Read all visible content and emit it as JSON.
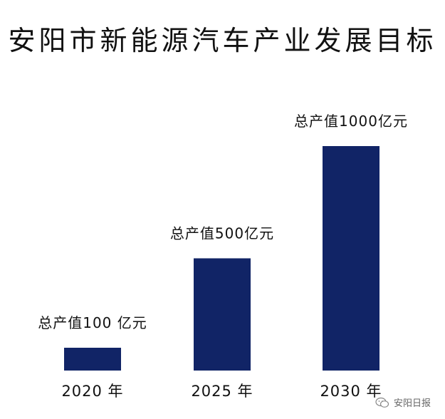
{
  "chart_data": {
    "type": "bar",
    "title": "安阳市新能源汽车产业发展目标",
    "categories": [
      "2020 年",
      "2025 年",
      "2030 年"
    ],
    "values": [
      100,
      500,
      1000
    ],
    "data_labels": [
      "总产值100 亿元",
      "总产值500亿元",
      "总产值1000亿元"
    ],
    "unit": "亿元",
    "xlabel": "",
    "ylabel": "",
    "ylim": [
      0,
      1000
    ],
    "grid": false,
    "legend": "none",
    "bar_color": "#112466"
  },
  "watermark": {
    "text": "安阳日报",
    "icon": "wechat-icon"
  }
}
